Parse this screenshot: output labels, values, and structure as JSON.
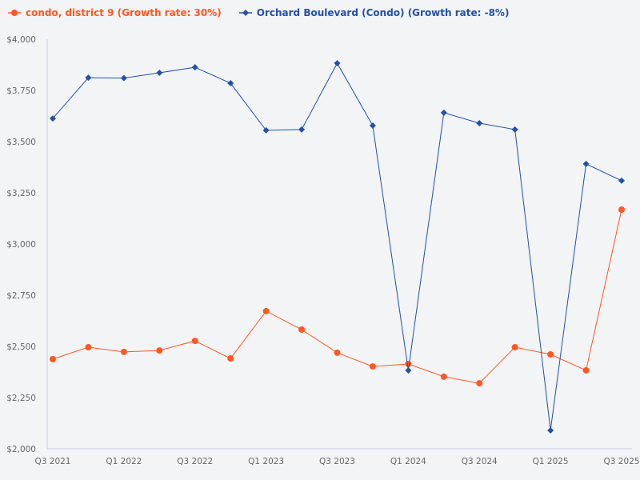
{
  "chart_data": {
    "type": "line",
    "title": "",
    "xlabel": "",
    "ylabel": "",
    "ylim": [
      2000,
      4000
    ],
    "yticks": [
      "$2,000",
      "$2,250",
      "$2,500",
      "$2,750",
      "$3,000",
      "$3,250",
      "$3,500",
      "$3,750",
      "$4,000"
    ],
    "ytick_values": [
      2000,
      2250,
      2500,
      2750,
      3000,
      3250,
      3500,
      3750,
      4000
    ],
    "categories": [
      "Q3 2021",
      "Q4 2021",
      "Q1 2022",
      "Q2 2022",
      "Q3 2022",
      "Q4 2022",
      "Q1 2023",
      "Q2 2023",
      "Q3 2023",
      "Q4 2023",
      "Q1 2024",
      "Q2 2024",
      "Q3 2024",
      "Q4 2024",
      "Q1 2025",
      "Q2 2025",
      "Q3 2025"
    ],
    "xtick_labels": [
      "Q3 2021",
      "",
      "Q1 2022",
      "",
      "Q3 2022",
      "",
      "Q1 2023",
      "",
      "Q3 2023",
      "",
      "Q1 2024",
      "",
      "Q3 2024",
      "",
      "Q1 2025",
      "",
      "Q3 2025"
    ],
    "grid": false,
    "legend_position": "top-left",
    "series": [
      {
        "name": "condo, district 9 (Growth rate: 30%)",
        "color": "#ff5722",
        "marker": "circle",
        "values": [
          2438,
          2496,
          2473,
          2480,
          2527,
          2441,
          2672,
          2582,
          2469,
          2402,
          2414,
          2352,
          2320,
          2496,
          2461,
          2383,
          3168
        ]
      },
      {
        "name": "Orchard Boulevard (Condo) (Growth rate: -8%)",
        "color": "#2450a8",
        "marker": "diamond",
        "values": [
          3613,
          3812,
          3810,
          3836,
          3863,
          3785,
          3555,
          3559,
          3883,
          3578,
          2383,
          3641,
          3590,
          3559,
          2090,
          3391,
          3309
        ]
      }
    ]
  }
}
